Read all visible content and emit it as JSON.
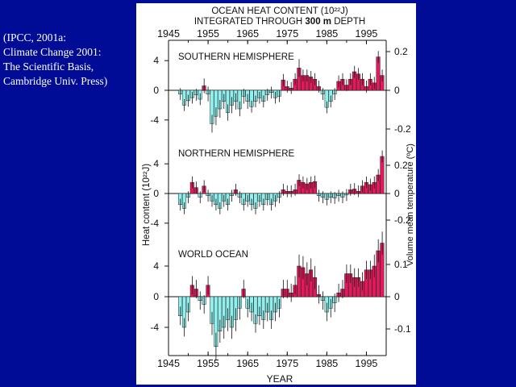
{
  "citation": [
    "(IPCC, 2001a:",
    "Climate Change 2001:",
    "The Scientific Basis,",
    "Cambridge Univ. Press)"
  ],
  "colors": {
    "background": "#000c96",
    "positive_bar": "#e2195a",
    "negative_bar": "#8ff0ee",
    "error_bar": "#111111",
    "text": "#ffffff"
  },
  "chart_data": {
    "type": "bar",
    "title_line1": "OCEAN HEAT CONTENT (10²²J)",
    "title_line2_prefix": "INTEGRATED THROUGH ",
    "title_line2_bold": "300 m",
    "title_line2_suffix": " DEPTH",
    "xlabel": "YEAR",
    "ylabel": "Heat content (10²²J)",
    "ylabel_right": "Volume mean temperature (ºC)",
    "x_ticks": [
      "1945",
      "1955",
      "1965",
      "1975",
      "1985",
      "1995"
    ],
    "xlim": [
      1945,
      2000
    ],
    "x_start_year": 1948,
    "panels": [
      {
        "name": "SOUTHERN HEMISPHERE",
        "ylim": [
          -6,
          6
        ],
        "left_ticks": [
          "4",
          "0",
          "-4"
        ],
        "right_ticks": [
          "0.2",
          "0",
          "-0.2"
        ],
        "values": [
          -0.5,
          -2.0,
          -1.4,
          -1.0,
          -0.6,
          -1.2,
          0.6,
          -0.5,
          -4.5,
          -3.5,
          -2.5,
          -1.5,
          -3.0,
          -2.0,
          -1.5,
          -2.5,
          -0.8,
          -1.5,
          -2.2,
          -1.5,
          -1.0,
          -1.5,
          -0.6,
          -0.3,
          -1.0,
          -0.8,
          1.4,
          0.5,
          0.3,
          1.5,
          3.0,
          2.0,
          2.0,
          1.8,
          1.5,
          0.5,
          -0.5,
          -2.3,
          -1.5,
          -0.5,
          1.2,
          1.5,
          0.7,
          1.5,
          2.5,
          2.2,
          1.5,
          0.5,
          1.5,
          1.0,
          4.5,
          2.0
        ],
        "errors": [
          0.8,
          0.8,
          0.8,
          0.8,
          0.8,
          0.8,
          1.0,
          1.0,
          1.2,
          1.2,
          1.2,
          1.0,
          1.1,
          1.1,
          1.1,
          1.0,
          1.0,
          1.0,
          0.8,
          0.8,
          0.8,
          0.8,
          0.8,
          0.8,
          0.8,
          0.8,
          0.8,
          0.8,
          0.8,
          0.8,
          1.2,
          0.8,
          0.8,
          0.8,
          0.8,
          0.8,
          0.8,
          0.8,
          0.8,
          0.8,
          0.8,
          0.8,
          0.8,
          0.8,
          0.8,
          0.8,
          0.8,
          0.8,
          0.8,
          0.8,
          0.8,
          0.8
        ]
      },
      {
        "name": "NORTHERN HEMISPHERE",
        "ylim": [
          -6,
          6
        ],
        "left_ticks": [
          "4",
          "0",
          "-4"
        ],
        "right_ticks": [
          "0.2",
          "0",
          "-0.2"
        ],
        "values": [
          -1.5,
          -2.0,
          -0.5,
          1.5,
          0.8,
          -0.5,
          1.0,
          -0.3,
          -1.0,
          -1.5,
          -2.0,
          -1.0,
          -1.5,
          -0.3,
          0.5,
          -0.5,
          -1.5,
          -1.0,
          -1.5,
          -2.0,
          -1.0,
          -1.5,
          -0.8,
          -1.5,
          -1.0,
          -0.5,
          0.5,
          0.3,
          0.3,
          0.5,
          1.8,
          1.5,
          1.3,
          1.5,
          1.6,
          -0.3,
          -0.5,
          -0.8,
          -0.5,
          -0.6,
          -0.3,
          -0.5,
          -0.2,
          0.5,
          0.6,
          0.3,
          1.0,
          1.5,
          1.2,
          1.5,
          2.5,
          5.0
        ],
        "errors": [
          0.8,
          0.8,
          0.8,
          0.8,
          0.8,
          0.8,
          0.8,
          0.8,
          0.8,
          0.8,
          0.8,
          0.8,
          0.8,
          0.8,
          0.8,
          0.8,
          0.8,
          0.8,
          0.8,
          0.8,
          0.8,
          0.8,
          0.8,
          0.8,
          0.8,
          0.8,
          0.8,
          0.8,
          0.8,
          0.8,
          0.8,
          0.8,
          0.8,
          0.8,
          0.8,
          0.8,
          0.8,
          0.8,
          0.8,
          0.8,
          0.8,
          0.8,
          0.8,
          0.8,
          0.8,
          0.8,
          0.8,
          0.8,
          0.8,
          0.8,
          0.8,
          0.8
        ]
      },
      {
        "name": "WORLD OCEAN",
        "ylim": [
          -8,
          8
        ],
        "left_ticks": [
          "4",
          "0",
          "-4"
        ],
        "right_ticks": [
          "0.1",
          "0",
          "-0.1"
        ],
        "values": [
          -2.5,
          -4.0,
          -2.0,
          1.5,
          1.0,
          -0.5,
          -1.0,
          1.5,
          -3.5,
          -6.5,
          -4.5,
          -4.0,
          -3.0,
          -4.0,
          -3.0,
          -1.5,
          1.0,
          -1.5,
          -2.0,
          -3.5,
          -2.5,
          -3.0,
          -2.0,
          -3.0,
          -2.0,
          -1.5,
          1.0,
          1.0,
          0.5,
          1.5,
          4.0,
          3.8,
          3.0,
          3.5,
          2.5,
          0.3,
          -0.5,
          -2.0,
          -1.5,
          -0.8,
          0.5,
          1.0,
          3.0,
          3.0,
          2.5,
          2.5,
          2.0,
          3.5,
          3.5,
          4.0,
          6.0,
          7.0
        ],
        "errors": [
          1.2,
          1.2,
          1.2,
          1.2,
          1.2,
          1.2,
          1.2,
          1.2,
          1.5,
          1.8,
          1.5,
          1.5,
          1.5,
          1.5,
          1.5,
          1.5,
          1.2,
          1.2,
          1.2,
          1.2,
          1.2,
          1.2,
          1.2,
          1.2,
          1.2,
          1.2,
          1.2,
          1.2,
          1.2,
          1.2,
          1.5,
          1.5,
          1.5,
          1.5,
          1.5,
          1.2,
          1.2,
          1.2,
          1.2,
          1.2,
          1.2,
          1.2,
          1.2,
          1.2,
          1.2,
          1.2,
          1.2,
          1.2,
          1.2,
          1.5,
          1.5,
          1.5
        ]
      }
    ]
  }
}
